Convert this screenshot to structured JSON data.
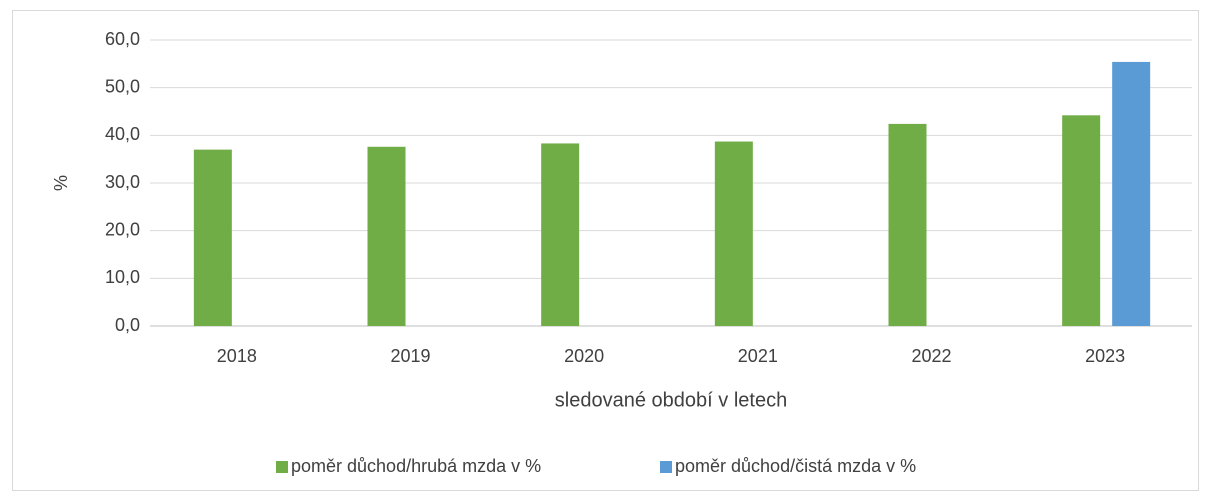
{
  "chart_data": {
    "type": "bar",
    "x_label": "sledované období v letech",
    "y_label": "%",
    "categories": [
      "2018",
      "2019",
      "2020",
      "2021",
      "2022",
      "2023"
    ],
    "series": [
      {
        "name": "poměr důchod/hrubá mzda v %",
        "color": "#70ad47",
        "values": [
          37.0,
          37.6,
          38.3,
          38.7,
          42.4,
          44.2
        ]
      },
      {
        "name": "poměr důchod/čistá mzda v %",
        "color": "#5b9bd5",
        "values": [
          null,
          null,
          null,
          null,
          null,
          55.4
        ]
      }
    ],
    "ylim": [
      0,
      60
    ],
    "yticks": [
      {
        "value": 0,
        "label": "0,0"
      },
      {
        "value": 10,
        "label": "10,0"
      },
      {
        "value": 20,
        "label": "20,0"
      },
      {
        "value": 30,
        "label": "30,0"
      },
      {
        "value": 40,
        "label": "40,0"
      },
      {
        "value": 50,
        "label": "50,0"
      },
      {
        "value": 60,
        "label": "60,0"
      }
    ],
    "grid": true,
    "legend": "bottom"
  }
}
